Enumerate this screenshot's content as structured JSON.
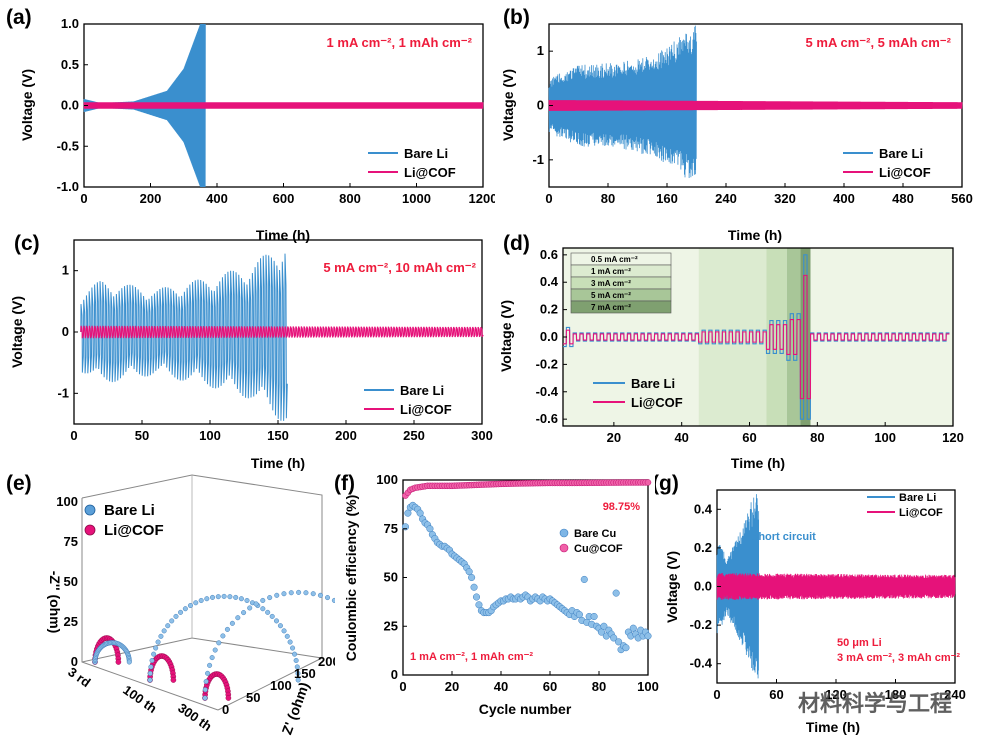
{
  "colors": {
    "bare": "#3a8fce",
    "cof": "#e6127a",
    "cond": "#ee1c3c"
  },
  "watermark": "材料科学与工程",
  "chart_data": [
    {
      "id": "a",
      "type": "line",
      "panel_label": "(a)",
      "xlabel": "Time (h)",
      "ylabel": "Voltage (V)",
      "xlim": [
        0,
        1200
      ],
      "ylim": [
        -1.0,
        1.0
      ],
      "xticks": [
        "0",
        "200",
        "400",
        "600",
        "800",
        "1000",
        "1200"
      ],
      "yticks": [
        "1.0",
        "0.5",
        "0.0",
        "-0.5",
        "-1.0"
      ],
      "annotation": "1 mA cm⁻², 1 mAh cm⁻²",
      "series": [
        {
          "name": "Bare Li",
          "envelope_t": [
            0,
            50,
            150,
            250,
            300,
            350,
            365
          ],
          "envelope_v": [
            0.08,
            0.03,
            0.05,
            0.18,
            0.45,
            1.0,
            1.0
          ],
          "end_h": 365
        },
        {
          "name": "Li@COF",
          "envelope_t": [
            0,
            1200
          ],
          "envelope_v": [
            0.04,
            0.04
          ],
          "end_h": 1200
        }
      ]
    },
    {
      "id": "b",
      "type": "line",
      "panel_label": "(b)",
      "xlabel": "Time (h)",
      "ylabel": "Voltage (V)",
      "xlim": [
        0,
        560
      ],
      "ylim": [
        -1.5,
        1.5
      ],
      "xticks": [
        "0",
        "80",
        "160",
        "240",
        "320",
        "400",
        "480",
        "560"
      ],
      "yticks": [
        "1",
        "0",
        "-1"
      ],
      "annotation": "5 mA cm⁻², 5 mAh cm⁻²",
      "series": [
        {
          "name": "Bare Li",
          "envelope_t": [
            0,
            40,
            100,
            150,
            200
          ],
          "envelope_v": [
            0.5,
            0.75,
            0.8,
            1.0,
            1.5
          ],
          "end_h": 200
        },
        {
          "name": "Li@COF",
          "envelope_t": [
            0,
            560
          ],
          "envelope_v": [
            0.1,
            0.06
          ],
          "end_h": 560
        }
      ]
    },
    {
      "id": "c",
      "type": "line",
      "panel_label": "(c)",
      "xlabel": "Time (h)",
      "ylabel": "Voltage (V)",
      "xlim": [
        0,
        300
      ],
      "ylim": [
        -1.5,
        1.5
      ],
      "xticks": [
        "0",
        "50",
        "100",
        "150",
        "200",
        "250",
        "300"
      ],
      "yticks": [
        "1",
        "0",
        "-1"
      ],
      "annotation": "5 mA cm⁻², 10 mAh cm⁻²",
      "series": [
        {
          "name": "Bare Li",
          "envelope_t": [
            5,
            20,
            60,
            100,
            130,
            155
          ],
          "envelope_v": [
            0.65,
            0.85,
            0.7,
            0.9,
            1.1,
            1.5
          ],
          "end_h": 156
        },
        {
          "name": "Li@COF",
          "envelope_t": [
            5,
            300
          ],
          "envelope_v": [
            0.1,
            0.08
          ],
          "end_h": 300
        }
      ]
    },
    {
      "id": "d",
      "type": "line",
      "panel_label": "(d)",
      "xlabel": "Time (h)",
      "ylabel": "Voltage (V)",
      "xlim": [
        5,
        120
      ],
      "ylim": [
        -0.65,
        0.65
      ],
      "xticks": [
        "20",
        "40",
        "60",
        "80",
        "100",
        "120"
      ],
      "yticks": [
        "0.6",
        "0.4",
        "0.2",
        "0.0",
        "-0.2",
        "-0.4",
        "-0.6"
      ],
      "rate_legend": [
        "0.5 mA cm⁻²",
        "1 mA cm⁻²",
        "3 mA cm⁻²",
        "5 mA cm⁻²",
        "7 mA cm⁻²"
      ],
      "series": [
        {
          "name": "Bare Li"
        },
        {
          "name": "Li@COF"
        }
      ]
    },
    {
      "id": "e",
      "type": "scatter",
      "panel_label": "(e)",
      "xlabel": "Z' (ohm)",
      "ylabel": "-Z'' (ohm)",
      "zticks": [
        "0",
        "25",
        "50",
        "75",
        "100"
      ],
      "xticks": [
        "0",
        "50",
        "100",
        "150",
        "200"
      ],
      "cycle_labels": [
        "3 rd",
        "100 th",
        "300 th"
      ],
      "series": [
        {
          "name": "Bare Li",
          "semicircle_ohm": [
            22,
            95,
            120
          ]
        },
        {
          "name": "Li@COF",
          "semicircle_ohm": [
            15,
            15,
            15
          ]
        }
      ]
    },
    {
      "id": "f",
      "type": "scatter",
      "panel_label": "(f)",
      "xlabel": "Cycle number",
      "ylabel": "Coulombic efficiency (%)",
      "xlim": [
        0,
        100
      ],
      "ylim": [
        0,
        100
      ],
      "xticks": [
        "0",
        "20",
        "40",
        "60",
        "80",
        "100"
      ],
      "yticks": [
        "100",
        "75",
        "50",
        "25",
        "0"
      ],
      "annotation": "1 mA cm⁻², 1 mAh cm⁻²",
      "efficiency_label": "98.75%",
      "series": [
        {
          "name": "Bare Cu",
          "x": [
            1,
            2,
            3,
            4,
            5,
            6,
            7,
            8,
            9,
            10,
            11,
            12,
            13,
            14,
            15,
            16,
            17,
            18,
            19,
            20,
            21,
            22,
            23,
            24,
            25,
            26,
            27,
            28,
            29,
            30,
            31,
            32,
            33,
            34,
            35,
            36,
            37,
            38,
            39,
            40,
            41,
            42,
            43,
            44,
            45,
            46,
            47,
            48,
            49,
            50,
            51,
            52,
            53,
            54,
            55,
            56,
            57,
            58,
            59,
            60,
            61,
            62,
            63,
            64,
            65,
            66,
            67,
            68,
            69,
            70,
            71,
            72,
            73,
            74,
            75,
            76,
            77,
            78,
            79,
            80,
            81,
            82,
            83,
            84,
            85,
            86,
            87,
            88,
            89,
            90,
            91,
            92,
            93,
            94,
            95,
            96,
            97,
            98,
            99,
            100
          ],
          "y": [
            76,
            83,
            86,
            87,
            86,
            85,
            83,
            80,
            78,
            77,
            75,
            72,
            70,
            68,
            67,
            66,
            66,
            65,
            64,
            62,
            61,
            60,
            59,
            58,
            57,
            55,
            53,
            50,
            45,
            40,
            36,
            33,
            32,
            32,
            32,
            33,
            35,
            36,
            37,
            38,
            38,
            39,
            39,
            40,
            39,
            39,
            40,
            39,
            40,
            41,
            40,
            38,
            39,
            40,
            39,
            38,
            40,
            39,
            38,
            39,
            38,
            37,
            36,
            35,
            34,
            33,
            32,
            31,
            33,
            30,
            32,
            31,
            28,
            49,
            27,
            30,
            26,
            30,
            25,
            24,
            22,
            25,
            20,
            23,
            21,
            19,
            42,
            17,
            13,
            15,
            14,
            22,
            20,
            24,
            21,
            19,
            23,
            20,
            22,
            20
          ]
        },
        {
          "name": "Cu@COF",
          "x": [
            1,
            3,
            5,
            10,
            20,
            30,
            40,
            50,
            60,
            70,
            80,
            90,
            100
          ],
          "y": [
            92,
            95,
            96,
            97,
            97,
            97.5,
            98,
            98.3,
            98.5,
            98.5,
            98.6,
            98.7,
            98.75
          ]
        }
      ]
    },
    {
      "id": "g",
      "type": "line",
      "panel_label": "(g)",
      "xlabel": "Time (h)",
      "ylabel": "Voltage (V)",
      "xlim": [
        0,
        240
      ],
      "ylim": [
        -0.5,
        0.5
      ],
      "xticks": [
        "0",
        "60",
        "120",
        "180",
        "240"
      ],
      "yticks": [
        "0.4",
        "0.2",
        "0.0",
        "-0.2",
        "-0.4"
      ],
      "annotation_1": "50 μm Li",
      "annotation_2": "3 mA cm⁻², 3 mAh cm⁻²",
      "short_circuit_label": "Short circuit",
      "series": [
        {
          "name": "Bare Li",
          "envelope_t": [
            0,
            10,
            25,
            35,
            42
          ],
          "envelope_v": [
            0.25,
            0.15,
            0.3,
            0.45,
            0.5
          ],
          "end_h": 42
        },
        {
          "name": "Li@COF",
          "envelope_t": [
            0,
            240
          ],
          "envelope_v": [
            0.07,
            0.06
          ],
          "end_h": 240
        }
      ]
    }
  ]
}
